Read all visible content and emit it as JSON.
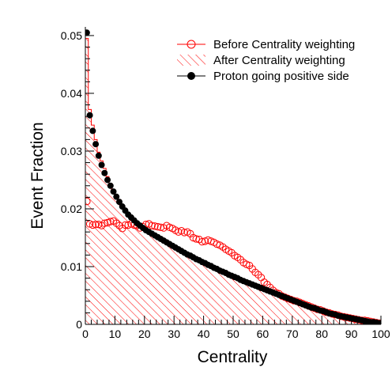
{
  "chart_data": {
    "type": "line",
    "title": "",
    "xlabel": "Centrality",
    "ylabel": "Event Fraction",
    "xlim": [
      0,
      100
    ],
    "ylim": [
      0,
      0.0515
    ],
    "grid": false,
    "legend_placement": "top-right",
    "x_ticks": [
      "0",
      "10",
      "20",
      "30",
      "40",
      "50",
      "60",
      "70",
      "80",
      "90",
      "100"
    ],
    "y_ticks": [
      "0",
      "0.01",
      "0.02",
      "0.03",
      "0.04",
      "0.05"
    ],
    "x": [
      0.5,
      1.5,
      2.5,
      3.5,
      4.5,
      5.5,
      6.5,
      7.5,
      8.5,
      9.5,
      10.5,
      11.5,
      12.5,
      13.5,
      14.5,
      15.5,
      16.5,
      17.5,
      18.5,
      19.5,
      20.5,
      21.5,
      22.5,
      23.5,
      24.5,
      25.5,
      26.5,
      27.5,
      28.5,
      29.5,
      30.5,
      31.5,
      32.5,
      33.5,
      34.5,
      35.5,
      36.5,
      37.5,
      38.5,
      39.5,
      40.5,
      41.5,
      42.5,
      43.5,
      44.5,
      45.5,
      46.5,
      47.5,
      48.5,
      49.5,
      50.5,
      51.5,
      52.5,
      53.5,
      54.5,
      55.5,
      56.5,
      57.5,
      58.5,
      59.5,
      60.5,
      61.5,
      62.5,
      63.5,
      64.5,
      65.5,
      66.5,
      67.5,
      68.5,
      69.5,
      70.5,
      71.5,
      72.5,
      73.5,
      74.5,
      75.5,
      76.5,
      77.5,
      78.5,
      79.5,
      80.5,
      81.5,
      82.5,
      83.5,
      84.5,
      85.5,
      86.5,
      87.5,
      88.5,
      89.5,
      90.5,
      91.5,
      92.5,
      93.5,
      94.5,
      95.5,
      96.5,
      97.5,
      98.5,
      99.5
    ],
    "series": [
      {
        "name": "Before Centrality weighting",
        "style": "open-circle",
        "color": "#ff0000",
        "values": [
          0.0213,
          0.0174,
          0.0172,
          0.0173,
          0.0173,
          0.0171,
          0.0175,
          0.0176,
          0.0178,
          0.0179,
          0.0175,
          0.0171,
          0.0166,
          0.0172,
          0.0172,
          0.0174,
          0.0172,
          0.0171,
          0.0167,
          0.0169,
          0.0173,
          0.0174,
          0.0171,
          0.017,
          0.0169,
          0.0168,
          0.0167,
          0.0171,
          0.0168,
          0.0166,
          0.0163,
          0.016,
          0.0162,
          0.0159,
          0.016,
          0.0157,
          0.015,
          0.0148,
          0.0147,
          0.0143,
          0.0144,
          0.0146,
          0.0144,
          0.0142,
          0.0139,
          0.0137,
          0.0134,
          0.013,
          0.0127,
          0.0124,
          0.0119,
          0.0116,
          0.0112,
          0.0107,
          0.0104,
          0.0102,
          0.0096,
          0.009,
          0.0086,
          0.0081,
          0.0073,
          0.0069,
          0.0064,
          0.0059,
          0.0055,
          0.0053,
          0.0049,
          0.0047,
          0.0045,
          0.0043,
          0.0041,
          0.004,
          0.0038,
          0.0036,
          0.0034,
          0.0032,
          0.003,
          0.0028,
          0.0026,
          0.0025,
          0.0023,
          0.0021,
          0.002,
          0.0018,
          0.0017,
          0.0016,
          0.0014,
          0.0013,
          0.0012,
          0.0011,
          0.001,
          0.0009,
          0.0008,
          0.0007,
          0.0007,
          0.0006,
          0.0005,
          0.0004,
          0.0003,
          0.0002
        ]
      },
      {
        "name": "After Centrality weighting",
        "style": "hatched-histogram",
        "color": "#ff0000",
        "values": [
          0.0495,
          0.0372,
          0.0345,
          0.032,
          0.0298,
          0.0283,
          0.027,
          0.0256,
          0.0244,
          0.0233,
          0.0224,
          0.0216,
          0.0206,
          0.0199,
          0.0192,
          0.0186,
          0.018,
          0.0177,
          0.0172,
          0.0168,
          0.0164,
          0.0161,
          0.0158,
          0.0155,
          0.0152,
          0.0149,
          0.0146,
          0.0143,
          0.014,
          0.0137,
          0.0134,
          0.0131,
          0.0128,
          0.0125,
          0.0122,
          0.012,
          0.0117,
          0.0114,
          0.0112,
          0.0109,
          0.0107,
          0.0104,
          0.0102,
          0.0099,
          0.0097,
          0.0094,
          0.0092,
          0.009,
          0.0087,
          0.0085,
          0.0083,
          0.0081,
          0.0078,
          0.0076,
          0.0074,
          0.0072,
          0.007,
          0.0068,
          0.0066,
          0.0064,
          0.0062,
          0.006,
          0.0058,
          0.0056,
          0.0054,
          0.0052,
          0.005,
          0.0048,
          0.0046,
          0.0044,
          0.0042,
          0.004,
          0.0038,
          0.0036,
          0.0034,
          0.0032,
          0.003,
          0.0028,
          0.0026,
          0.0025,
          0.0023,
          0.0021,
          0.002,
          0.0018,
          0.0017,
          0.0016,
          0.0014,
          0.0013,
          0.0012,
          0.0011,
          0.001,
          0.0009,
          0.0008,
          0.0007,
          0.0007,
          0.0006,
          0.0005,
          0.0004,
          0.0003,
          0.0002
        ]
      },
      {
        "name": "Proton going positive side",
        "style": "filled-circle",
        "color": "#000000",
        "values": [
          0.0505,
          0.0362,
          0.0335,
          0.0312,
          0.0292,
          0.0276,
          0.0262,
          0.025,
          0.024,
          0.023,
          0.0221,
          0.0212,
          0.0204,
          0.0197,
          0.019,
          0.0185,
          0.018,
          0.0175,
          0.0171,
          0.0167,
          0.0163,
          0.016,
          0.0157,
          0.0154,
          0.0151,
          0.0148,
          0.0145,
          0.0142,
          0.0139,
          0.0136,
          0.0133,
          0.013,
          0.0127,
          0.0124,
          0.0121,
          0.0119,
          0.0116,
          0.0113,
          0.0111,
          0.0108,
          0.0106,
          0.0103,
          0.0101,
          0.0098,
          0.0096,
          0.0093,
          0.0091,
          0.0089,
          0.0086,
          0.0084,
          0.0082,
          0.008,
          0.0077,
          0.0075,
          0.0073,
          0.0071,
          0.0069,
          0.0067,
          0.0065,
          0.0063,
          0.0061,
          0.0059,
          0.0057,
          0.0055,
          0.0053,
          0.0051,
          0.0049,
          0.0047,
          0.0045,
          0.0043,
          0.0041,
          0.0039,
          0.0037,
          0.0035,
          0.0033,
          0.0031,
          0.0029,
          0.0028,
          0.0026,
          0.0024,
          0.0023,
          0.0021,
          0.0019,
          0.0018,
          0.0017,
          0.0015,
          0.0014,
          0.0013,
          0.0012,
          0.0011,
          0.001,
          0.0009,
          0.0008,
          0.0007,
          0.0006,
          0.0005,
          0.0004,
          0.0004,
          0.0003,
          0.0002
        ]
      }
    ]
  }
}
